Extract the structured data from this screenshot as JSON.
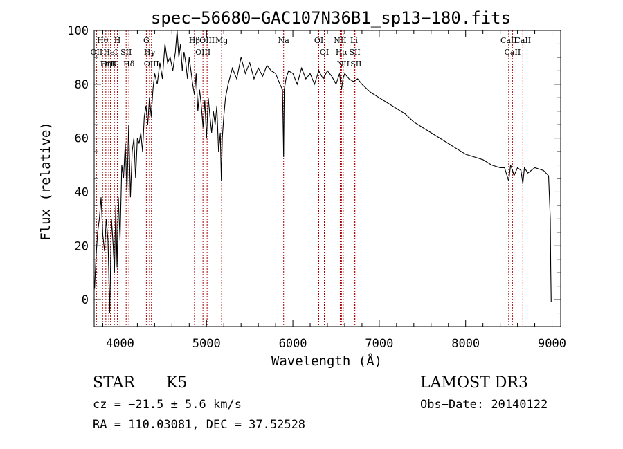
{
  "chart_data": {
    "type": "line",
    "title": "spec−56680−GAC107N36B1_sp13−180.fits",
    "xlabel": "Wavelength (Å)",
    "ylabel": "Flux (relative)",
    "xlim": [
      3700,
      9100
    ],
    "ylim": [
      -10,
      100
    ],
    "xticks": [
      4000,
      5000,
      6000,
      7000,
      8000,
      9000
    ],
    "yticks": [
      0,
      20,
      40,
      60,
      80,
      100
    ],
    "grid": false,
    "line_color": "#000000",
    "marker_color": "#aa0000",
    "series": [
      {
        "name": "flux",
        "x": [
          3705,
          3720,
          3740,
          3760,
          3780,
          3800,
          3820,
          3840,
          3860,
          3880,
          3900,
          3920,
          3935,
          3950,
          3965,
          3980,
          4000,
          4020,
          4040,
          4060,
          4080,
          4100,
          4120,
          4140,
          4160,
          4180,
          4200,
          4220,
          4240,
          4260,
          4280,
          4300,
          4320,
          4340,
          4360,
          4380,
          4400,
          4430,
          4460,
          4490,
          4520,
          4550,
          4580,
          4610,
          4640,
          4660,
          4680,
          4700,
          4720,
          4740,
          4760,
          4780,
          4800,
          4820,
          4840,
          4861,
          4880,
          4900,
          4920,
          4940,
          4960,
          4980,
          5000,
          5020,
          5040,
          5060,
          5080,
          5100,
          5120,
          5140,
          5160,
          5172,
          5183,
          5200,
          5220,
          5250,
          5300,
          5350,
          5400,
          5450,
          5500,
          5550,
          5600,
          5650,
          5700,
          5750,
          5800,
          5850,
          5880,
          5890,
          5893,
          5900,
          5920,
          5950,
          6000,
          6050,
          6100,
          6150,
          6200,
          6250,
          6300,
          6350,
          6400,
          6450,
          6500,
          6540,
          6563,
          6580,
          6600,
          6650,
          6700,
          6750,
          6800,
          6900,
          7000,
          7100,
          7200,
          7300,
          7400,
          7500,
          7600,
          7700,
          7800,
          7900,
          8000,
          8100,
          8200,
          8300,
          8400,
          8450,
          8498,
          8520,
          8542,
          8560,
          8600,
          8640,
          8662,
          8680,
          8720,
          8800,
          8900,
          8960,
          8980,
          8985,
          8990
        ],
        "y": [
          4,
          15,
          25,
          30,
          38,
          24,
          18,
          30,
          22,
          -5,
          30,
          20,
          10,
          35,
          12,
          38,
          22,
          50,
          45,
          58,
          40,
          65,
          38,
          55,
          60,
          45,
          60,
          58,
          62,
          55,
          68,
          72,
          65,
          75,
          68,
          78,
          84,
          80,
          88,
          82,
          95,
          88,
          90,
          85,
          92,
          100,
          90,
          95,
          85,
          92,
          88,
          82,
          90,
          85,
          80,
          76,
          84,
          70,
          78,
          72,
          64,
          74,
          60,
          75,
          68,
          62,
          70,
          65,
          72,
          55,
          62,
          44,
          60,
          68,
          75,
          80,
          86,
          82,
          90,
          84,
          88,
          82,
          86,
          83,
          87,
          85,
          84,
          80,
          78,
          60,
          53,
          78,
          82,
          85,
          84,
          80,
          86,
          82,
          84,
          80,
          85,
          82,
          85,
          83,
          80,
          84,
          78,
          82,
          84,
          82,
          81,
          82,
          80,
          77,
          75,
          73,
          71,
          69,
          66,
          64,
          62,
          60,
          58,
          56,
          54,
          53,
          52,
          50,
          49,
          49,
          44,
          50,
          48,
          46,
          49,
          48,
          43,
          49,
          47,
          49,
          48,
          46,
          30,
          12,
          -1
        ]
      }
    ],
    "lines": [
      {
        "label": "Hθ",
        "wl": 3798
      },
      {
        "label": "OII",
        "wl": 3727
      },
      {
        "label": "OIII",
        "wl": 3869
      },
      {
        "label": "HeI",
        "wl": 3889
      },
      {
        "label": "Hη",
        "wl": 3835
      },
      {
        "label": "K",
        "wl": 3934
      },
      {
        "label": "H",
        "wl": 3969
      },
      {
        "label": "SII",
        "wl": 4070
      },
      {
        "label": "Hδ",
        "wl": 4102
      },
      {
        "label": "G",
        "wl": 4304
      },
      {
        "label": "Hγ",
        "wl": 4341
      },
      {
        "label": "OIII",
        "wl": 4363
      },
      {
        "label": "Hβ",
        "wl": 4861
      },
      {
        "label": "OIII",
        "wl": 4959
      },
      {
        "label": "OIII",
        "wl": 5007
      },
      {
        "label": "Mg",
        "wl": 5175
      },
      {
        "label": "Na",
        "wl": 5893
      },
      {
        "label": "OI",
        "wl": 6300
      },
      {
        "label": "OI",
        "wl": 6364
      },
      {
        "label": "NII",
        "wl": 6548
      },
      {
        "label": "Hα",
        "wl": 6563
      },
      {
        "label": "NII",
        "wl": 6583
      },
      {
        "label": "Li",
        "wl": 6708
      },
      {
        "label": "SII",
        "wl": 6717
      },
      {
        "label": "SII",
        "wl": 6731
      },
      {
        "label": "CaII",
        "wl": 8498
      },
      {
        "label": "CaII",
        "wl": 8542
      },
      {
        "label": "CaII",
        "wl": 8662
      }
    ]
  },
  "info": {
    "class_label": "STAR",
    "subclass_label": "K5",
    "cz_text": "cz = −21.5 ± 5.6 km/s",
    "radec_text": "RA = 110.03081, DEC =  37.52528",
    "survey_label": "LAMOST DR3",
    "obsdate_text": "Obs−Date: 20140122"
  }
}
